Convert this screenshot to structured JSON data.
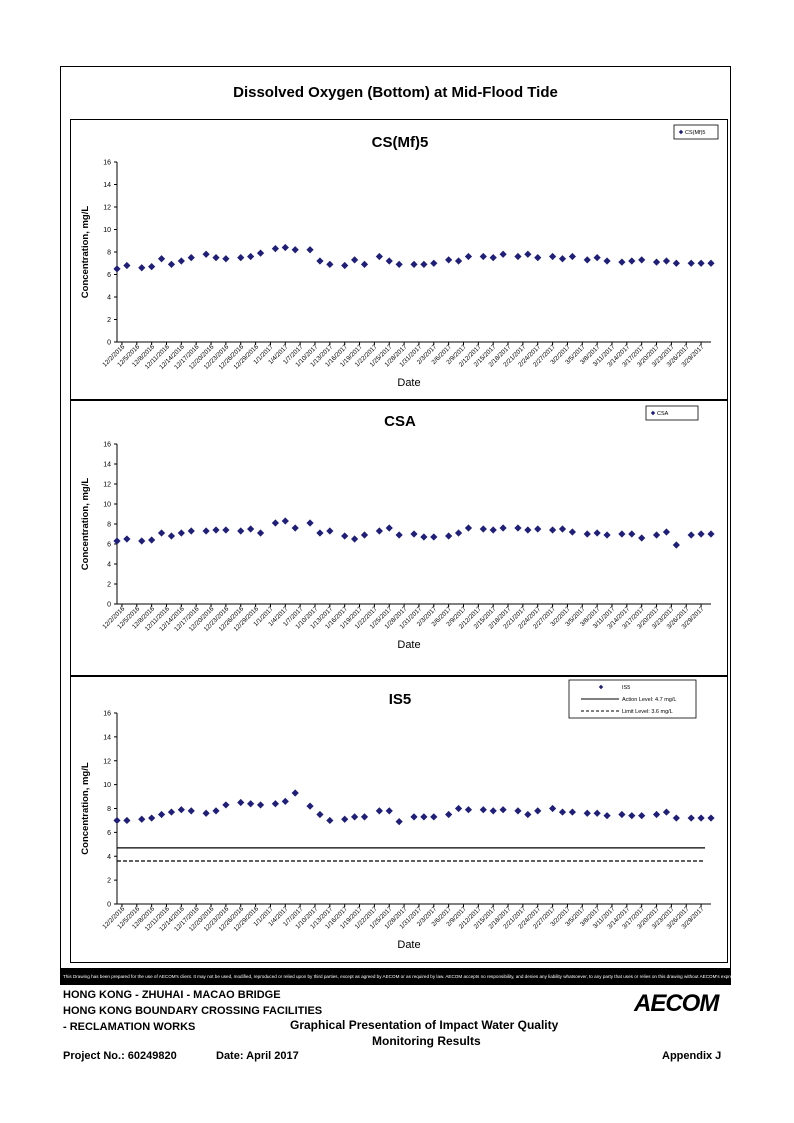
{
  "main_title": "Dissolved Oxygen (Bottom) at Mid-Flood Tide",
  "disclaimer": "This Drawing has been prepared for the use of AECOM's client. It may not be used, modified, reproduced or relied upon by third parties, except as agreed by AECOM or as required by law. AECOM accepts no responsibility, and denies any liability whatsoever, to any party that uses or relies on this drawing without AECOM's express written consent.",
  "footer": {
    "line1": "HONG KONG - ZHUHAI - MACAO BRIDGE",
    "line2": "HONG KONG BOUNDARY CROSSING FACILITIES",
    "line3": "- RECLAMATION WORKS",
    "project": "Project No.: 60249820",
    "date": "Date: April 2017",
    "graph_title1": "Graphical Presentation of Impact Water Quality",
    "graph_title2": "Monitoring Results",
    "appendix": "Appendix J",
    "logo": "AECOM"
  },
  "colors": {
    "marker": "#1f1f7a",
    "line": "#000000"
  },
  "chart_data": [
    {
      "type": "scatter",
      "title": "CS(Mf)5",
      "xlabel": "Date",
      "ylabel": "Concentration, mg/L",
      "ylim": [
        0,
        16
      ],
      "yticks": [
        0,
        2,
        4,
        6,
        8,
        10,
        12,
        14,
        16
      ],
      "xticks": [
        "12/2/2016",
        "12/5/2016",
        "12/8/2016",
        "12/11/2016",
        "12/14/2016",
        "12/17/2016",
        "12/20/2016",
        "12/23/2016",
        "12/26/2016",
        "12/29/2016",
        "1/1/2017",
        "1/4/2017",
        "1/7/2017",
        "1/10/2017",
        "1/13/2017",
        "1/16/2017",
        "1/19/2017",
        "1/22/2017",
        "1/25/2017",
        "1/28/2017",
        "1/31/2017",
        "2/3/2017",
        "2/6/2017",
        "2/9/2017",
        "2/12/2017",
        "2/15/2017",
        "2/18/2017",
        "2/21/2017",
        "2/24/2017",
        "2/27/2017",
        "3/2/2017",
        "3/5/2017",
        "3/8/2017",
        "3/11/2017",
        "3/14/2017",
        "3/17/2017",
        "3/20/2017",
        "3/23/2017",
        "3/26/2017",
        "3/29/2017"
      ],
      "legend": {
        "position": "top-right",
        "entries": [
          "CS(Mf)5"
        ]
      },
      "series": [
        {
          "name": "CS(Mf)5",
          "x": [
            "12/1/2016",
            "12/3/2016",
            "12/6/2016",
            "12/8/2016",
            "12/10/2016",
            "12/12/2016",
            "12/14/2016",
            "12/16/2016",
            "12/19/2016",
            "12/21/2016",
            "12/23/2016",
            "12/26/2016",
            "12/28/2016",
            "12/30/2016",
            "1/2/2017",
            "1/4/2017",
            "1/6/2017",
            "1/9/2017",
            "1/11/2017",
            "1/13/2017",
            "1/16/2017",
            "1/18/2017",
            "1/20/2017",
            "1/23/2017",
            "1/25/2017",
            "1/27/2017",
            "1/30/2017",
            "2/1/2017",
            "2/3/2017",
            "2/6/2017",
            "2/8/2017",
            "2/10/2017",
            "2/13/2017",
            "2/15/2017",
            "2/17/2017",
            "2/20/2017",
            "2/22/2017",
            "2/24/2017",
            "2/27/2017",
            "3/1/2017",
            "3/3/2017",
            "3/6/2017",
            "3/8/2017",
            "3/10/2017",
            "3/13/2017",
            "3/15/2017",
            "3/17/2017",
            "3/20/2017",
            "3/22/2017",
            "3/24/2017",
            "3/27/2017",
            "3/29/2017",
            "3/31/2017"
          ],
          "values": [
            6.5,
            6.8,
            6.6,
            6.7,
            7.4,
            6.9,
            7.2,
            7.5,
            7.8,
            7.5,
            7.4,
            7.5,
            7.6,
            7.9,
            8.3,
            8.4,
            8.2,
            8.2,
            7.2,
            6.9,
            6.8,
            7.3,
            6.9,
            7.6,
            7.2,
            6.9,
            6.9,
            6.9,
            7.0,
            7.3,
            7.2,
            7.6,
            7.6,
            7.5,
            7.8,
            7.6,
            7.8,
            7.5,
            7.6,
            7.4,
            7.6,
            7.3,
            7.5,
            7.2,
            7.1,
            7.2,
            7.3,
            7.1,
            7.2,
            7.0,
            7.0,
            7.0,
            7.0
          ]
        }
      ]
    },
    {
      "type": "scatter",
      "title": "CSA",
      "xlabel": "Date",
      "ylabel": "Concentration, mg/L",
      "ylim": [
        0,
        16
      ],
      "yticks": [
        0,
        2,
        4,
        6,
        8,
        10,
        12,
        14,
        16
      ],
      "xticks": [
        "12/2/2016",
        "12/5/2016",
        "12/8/2016",
        "12/11/2016",
        "12/14/2016",
        "12/17/2016",
        "12/20/2016",
        "12/23/2016",
        "12/26/2016",
        "12/29/2016",
        "1/1/2017",
        "1/4/2017",
        "1/7/2017",
        "1/10/2017",
        "1/13/2017",
        "1/16/2017",
        "1/19/2017",
        "1/22/2017",
        "1/25/2017",
        "1/28/2017",
        "1/31/2017",
        "2/3/2017",
        "2/6/2017",
        "2/9/2017",
        "2/12/2017",
        "2/15/2017",
        "2/18/2017",
        "2/21/2017",
        "2/24/2017",
        "2/27/2017",
        "3/2/2017",
        "3/5/2017",
        "3/8/2017",
        "3/11/2017",
        "3/14/2017",
        "3/17/2017",
        "3/20/2017",
        "3/23/2017",
        "3/26/2017",
        "3/29/2017"
      ],
      "legend": {
        "position": "top-right",
        "entries": [
          "CSA"
        ]
      },
      "series": [
        {
          "name": "CSA",
          "x": [
            "12/1/2016",
            "12/3/2016",
            "12/6/2016",
            "12/8/2016",
            "12/10/2016",
            "12/12/2016",
            "12/14/2016",
            "12/16/2016",
            "12/19/2016",
            "12/21/2016",
            "12/23/2016",
            "12/26/2016",
            "12/28/2016",
            "12/30/2016",
            "1/2/2017",
            "1/4/2017",
            "1/6/2017",
            "1/9/2017",
            "1/11/2017",
            "1/13/2017",
            "1/16/2017",
            "1/18/2017",
            "1/20/2017",
            "1/23/2017",
            "1/25/2017",
            "1/27/2017",
            "1/30/2017",
            "2/1/2017",
            "2/3/2017",
            "2/6/2017",
            "2/8/2017",
            "2/10/2017",
            "2/13/2017",
            "2/15/2017",
            "2/17/2017",
            "2/20/2017",
            "2/22/2017",
            "2/24/2017",
            "2/27/2017",
            "3/1/2017",
            "3/3/2017",
            "3/6/2017",
            "3/8/2017",
            "3/10/2017",
            "3/13/2017",
            "3/15/2017",
            "3/17/2017",
            "3/20/2017",
            "3/22/2017",
            "3/24/2017",
            "3/27/2017",
            "3/29/2017",
            "3/31/2017"
          ],
          "values": [
            6.3,
            6.5,
            6.3,
            6.4,
            7.1,
            6.8,
            7.1,
            7.3,
            7.3,
            7.4,
            7.4,
            7.3,
            7.5,
            7.1,
            8.1,
            8.3,
            7.6,
            8.1,
            7.1,
            7.3,
            6.8,
            6.5,
            6.9,
            7.3,
            7.6,
            6.9,
            7.0,
            6.7,
            6.7,
            6.8,
            7.1,
            7.6,
            7.5,
            7.4,
            7.6,
            7.6,
            7.4,
            7.5,
            7.4,
            7.5,
            7.2,
            7.0,
            7.1,
            6.9,
            7.0,
            7.0,
            6.6,
            6.9,
            7.2,
            5.9,
            6.9,
            7.0,
            7.0
          ]
        }
      ]
    },
    {
      "type": "scatter",
      "title": "IS5",
      "xlabel": "Date",
      "ylabel": "Concentration, mg/L",
      "ylim": [
        0,
        16
      ],
      "yticks": [
        0,
        2,
        4,
        6,
        8,
        10,
        12,
        14,
        16
      ],
      "xticks": [
        "12/2/2016",
        "12/5/2016",
        "12/8/2016",
        "12/11/2016",
        "12/14/2016",
        "12/17/2016",
        "12/20/2016",
        "12/23/2016",
        "12/26/2016",
        "12/29/2016",
        "1/1/2017",
        "1/4/2017",
        "1/7/2017",
        "1/10/2017",
        "1/13/2017",
        "1/16/2017",
        "1/19/2017",
        "1/22/2017",
        "1/25/2017",
        "1/28/2017",
        "1/31/2017",
        "2/3/2017",
        "2/6/2017",
        "2/9/2017",
        "2/12/2017",
        "2/15/2017",
        "2/18/2017",
        "2/21/2017",
        "2/24/2017",
        "2/27/2017",
        "3/2/2017",
        "3/5/2017",
        "3/8/2017",
        "3/11/2017",
        "3/14/2017",
        "3/17/2017",
        "3/20/2017",
        "3/23/2017",
        "3/26/2017",
        "3/29/2017"
      ],
      "legend": {
        "position": "top-right",
        "entries": [
          "IS5",
          "Action Level: 4.7 mg/L",
          "Limit Level: 3.6 mg/L"
        ]
      },
      "hlines": [
        {
          "name": "Action Level: 4.7 mg/L",
          "value": 4.7,
          "style": "solid"
        },
        {
          "name": "Limit Level: 3.6 mg/L",
          "value": 3.6,
          "style": "dashed"
        }
      ],
      "series": [
        {
          "name": "IS5",
          "x": [
            "12/1/2016",
            "12/3/2016",
            "12/6/2016",
            "12/8/2016",
            "12/10/2016",
            "12/12/2016",
            "12/14/2016",
            "12/16/2016",
            "12/19/2016",
            "12/21/2016",
            "12/23/2016",
            "12/26/2016",
            "12/28/2016",
            "12/30/2016",
            "1/2/2017",
            "1/4/2017",
            "1/6/2017",
            "1/9/2017",
            "1/11/2017",
            "1/13/2017",
            "1/16/2017",
            "1/18/2017",
            "1/20/2017",
            "1/23/2017",
            "1/25/2017",
            "1/27/2017",
            "1/30/2017",
            "2/1/2017",
            "2/3/2017",
            "2/6/2017",
            "2/8/2017",
            "2/10/2017",
            "2/13/2017",
            "2/15/2017",
            "2/17/2017",
            "2/20/2017",
            "2/22/2017",
            "2/24/2017",
            "2/27/2017",
            "3/1/2017",
            "3/3/2017",
            "3/6/2017",
            "3/8/2017",
            "3/10/2017",
            "3/13/2017",
            "3/15/2017",
            "3/17/2017",
            "3/20/2017",
            "3/22/2017",
            "3/24/2017",
            "3/27/2017",
            "3/29/2017",
            "3/31/2017"
          ],
          "values": [
            7.0,
            7.0,
            7.1,
            7.2,
            7.5,
            7.7,
            7.9,
            7.8,
            7.6,
            7.8,
            8.3,
            8.5,
            8.4,
            8.3,
            8.4,
            8.6,
            9.3,
            8.2,
            7.5,
            7.0,
            7.1,
            7.3,
            7.3,
            7.8,
            7.8,
            6.9,
            7.3,
            7.3,
            7.3,
            7.5,
            8.0,
            7.9,
            7.9,
            7.8,
            7.9,
            7.8,
            7.5,
            7.8,
            8.0,
            7.7,
            7.7,
            7.6,
            7.6,
            7.4,
            7.5,
            7.4,
            7.4,
            7.5,
            7.7,
            7.2,
            7.2,
            7.2,
            7.2
          ]
        }
      ]
    }
  ]
}
